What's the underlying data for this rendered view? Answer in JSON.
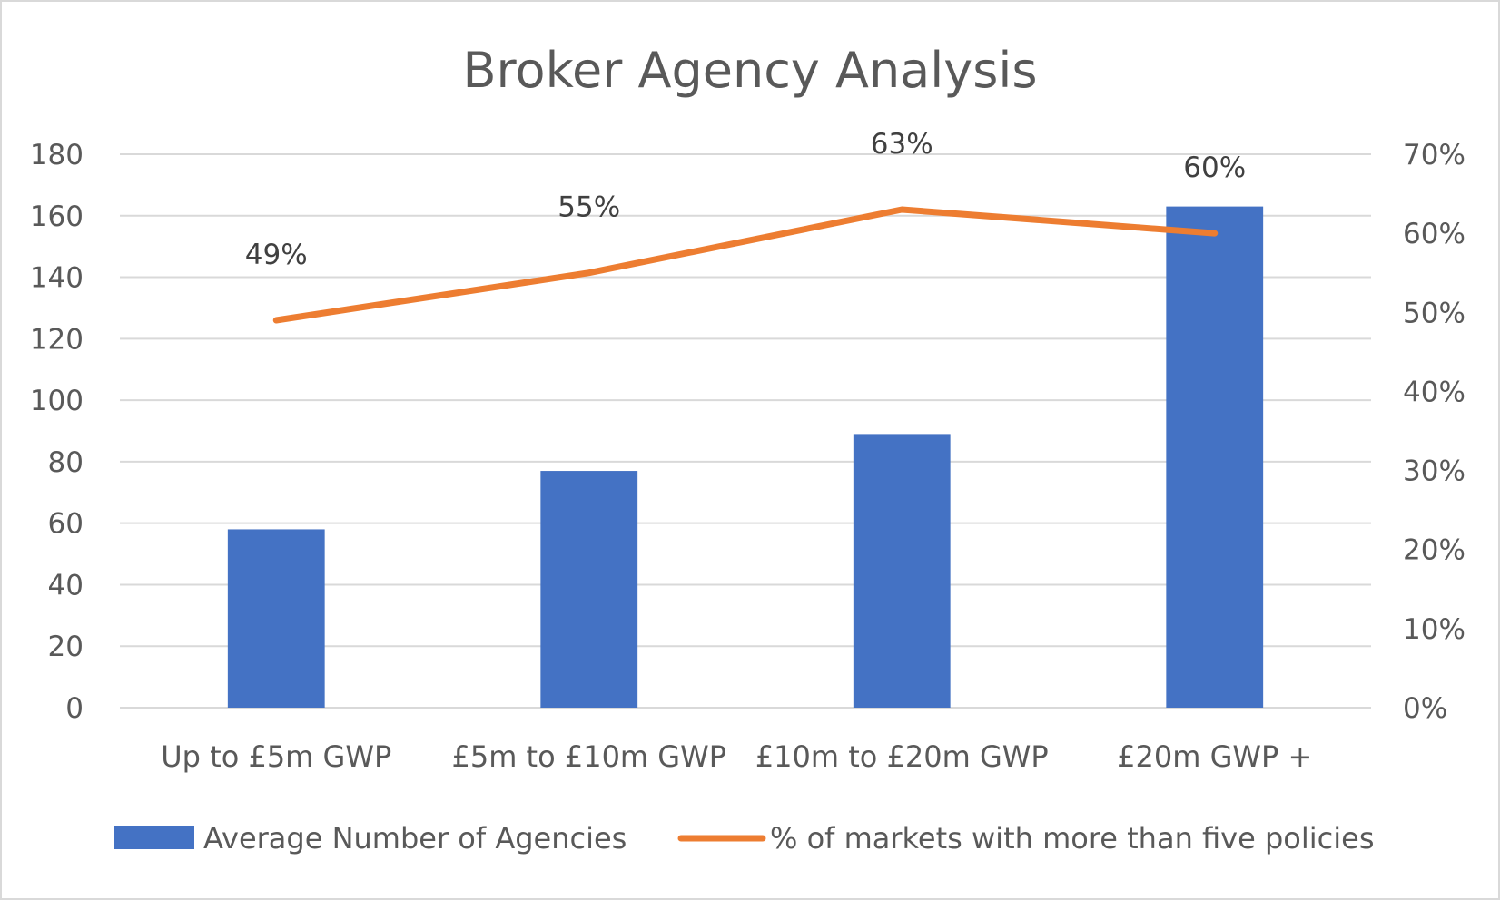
{
  "chart_data": {
    "type": "bar",
    "title": "Broker Agency Analysis",
    "categories": [
      "Up to £5m GWP",
      "£5m to £10m GWP",
      "£10m to £20m GWP",
      "£20m GWP +"
    ],
    "series": [
      {
        "name": "Average Number of Agencies",
        "type": "bar",
        "axis": "left",
        "color": "#4472C4",
        "values": [
          58,
          77,
          89,
          163
        ]
      },
      {
        "name": "% of markets with more than five policies",
        "type": "line",
        "axis": "right",
        "color": "#ED7D31",
        "values": [
          0.49,
          0.55,
          0.63,
          0.6
        ],
        "labels": [
          "49%",
          "55%",
          "63%",
          "60%"
        ]
      }
    ],
    "y_left": {
      "min": 0,
      "max": 180,
      "ticks": [
        "0",
        "20",
        "40",
        "60",
        "80",
        "100",
        "120",
        "140",
        "160",
        "180"
      ]
    },
    "y_right": {
      "min": 0,
      "max": 0.7,
      "ticks": [
        "0%",
        "10%",
        "20%",
        "30%",
        "40%",
        "50%",
        "60%",
        "70%"
      ]
    },
    "grid": true,
    "legend_position": "bottom",
    "colors": {
      "grid": "#D9D9D9",
      "border": "#D9D9D9"
    }
  }
}
